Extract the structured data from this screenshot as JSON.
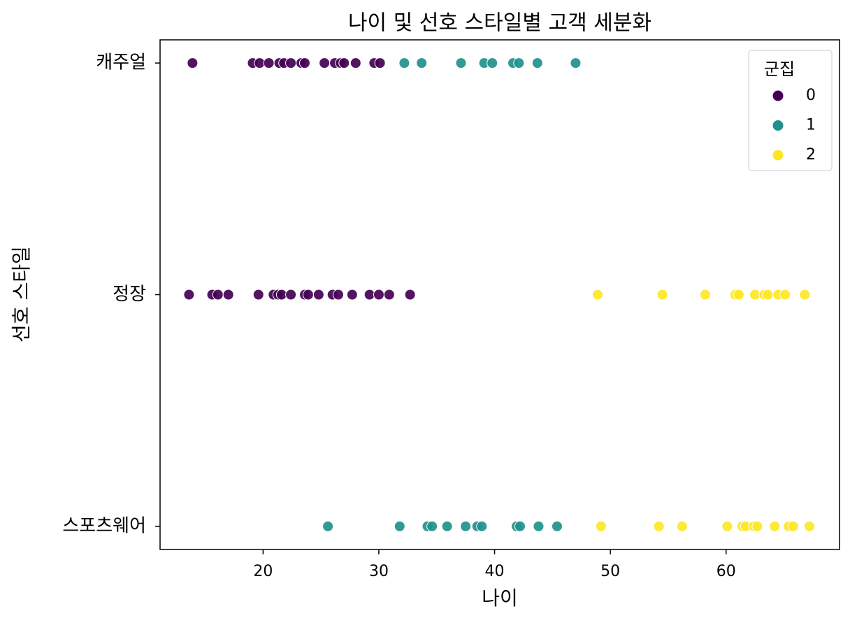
{
  "chart_data": {
    "type": "scatter",
    "title": "나이 및 선호 스타일별 고객 세분화",
    "x_label": "나이",
    "y_label": "선호 스타일",
    "xlim": [
      11.1,
      69.8
    ],
    "xticks": [
      20,
      30,
      40,
      50,
      60
    ],
    "ylim": [
      2.1,
      -0.1
    ],
    "yticks": [
      {
        "value": 0,
        "label": "캐주얼"
      },
      {
        "value": 1,
        "label": "정장"
      },
      {
        "value": 2,
        "label": "스포츠웨어"
      }
    ],
    "grid": false,
    "legend_title": "군집",
    "legend_position": "upper right",
    "series": [
      {
        "name": "0",
        "color": "#440154",
        "x": [
          13.9,
          19.1,
          19.7,
          20.5,
          21.4,
          21.8,
          22.4,
          23.3,
          23.6,
          25.3,
          26.2,
          26.7,
          27.0,
          28.0,
          29.6,
          30.1,
          13.6,
          15.6,
          16.1,
          17.0,
          19.6,
          20.9,
          21.3,
          21.6,
          22.4,
          23.6,
          23.9,
          24.8,
          26.0,
          26.5,
          27.7,
          29.2,
          30.0,
          30.9,
          32.7
        ],
        "y": [
          0,
          0,
          0,
          0,
          0,
          0,
          0,
          0,
          0,
          0,
          0,
          0,
          0,
          0,
          0,
          0,
          1,
          1,
          1,
          1,
          1,
          1,
          1,
          1,
          1,
          1,
          1,
          1,
          1,
          1,
          1,
          1,
          1,
          1,
          1
        ]
      },
      {
        "name": "1",
        "color": "#21918c",
        "x": [
          32.2,
          33.7,
          37.1,
          39.1,
          39.8,
          41.6,
          42.1,
          43.7,
          47.0,
          25.6,
          31.8,
          34.2,
          34.6,
          35.9,
          37.5,
          38.5,
          38.9,
          41.9,
          42.2,
          43.8,
          45.4
        ],
        "y": [
          0,
          0,
          0,
          0,
          0,
          0,
          0,
          0,
          0,
          2,
          2,
          2,
          2,
          2,
          2,
          2,
          2,
          2,
          2,
          2,
          2
        ]
      },
      {
        "name": "2",
        "color": "#fde725",
        "x": [
          48.9,
          54.5,
          58.2,
          60.8,
          61.1,
          62.5,
          63.3,
          63.6,
          64.5,
          65.1,
          66.8,
          49.2,
          54.2,
          56.2,
          60.1,
          61.4,
          61.7,
          62.4,
          62.7,
          64.2,
          65.4,
          65.8,
          67.2
        ],
        "y": [
          1,
          1,
          1,
          1,
          1,
          1,
          1,
          1,
          1,
          1,
          1,
          2,
          2,
          2,
          2,
          2,
          2,
          2,
          2,
          2,
          2,
          2,
          2
        ]
      }
    ]
  }
}
